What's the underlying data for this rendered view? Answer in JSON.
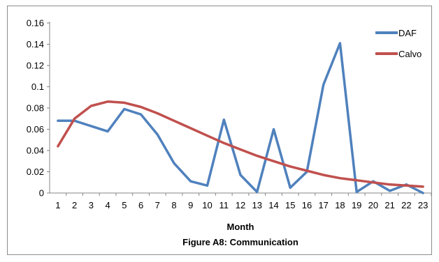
{
  "chart_data": {
    "type": "line",
    "x": [
      1,
      2,
      3,
      4,
      5,
      6,
      7,
      8,
      9,
      10,
      11,
      12,
      13,
      14,
      15,
      16,
      17,
      18,
      19,
      20,
      21,
      22,
      23
    ],
    "series": [
      {
        "name": "DAF",
        "color": "#4f81bd",
        "values": [
          0.068,
          0.068,
          0.063,
          0.058,
          0.079,
          0.074,
          0.055,
          0.028,
          0.011,
          0.007,
          0.069,
          0.017,
          0.001,
          0.06,
          0.005,
          0.02,
          0.102,
          0.141,
          0.001,
          0.011,
          0.002,
          0.008,
          0.0
        ]
      },
      {
        "name": "Calvo",
        "color": "#c0504d",
        "values": [
          0.044,
          0.07,
          0.082,
          0.086,
          0.085,
          0.081,
          0.075,
          0.068,
          0.061,
          0.054,
          0.047,
          0.041,
          0.035,
          0.03,
          0.025,
          0.021,
          0.017,
          0.014,
          0.012,
          0.01,
          0.008,
          0.007,
          0.006
        ]
      }
    ],
    "xlabel": "Month",
    "caption": "Figure A8: Communication",
    "yticks": [
      "0",
      "0.02",
      "0.04",
      "0.06",
      "0.08",
      "0.1",
      "0.12",
      "0.14",
      "0.16"
    ],
    "ylim": [
      0,
      0.16
    ],
    "grid": false,
    "legend": "top-right"
  }
}
